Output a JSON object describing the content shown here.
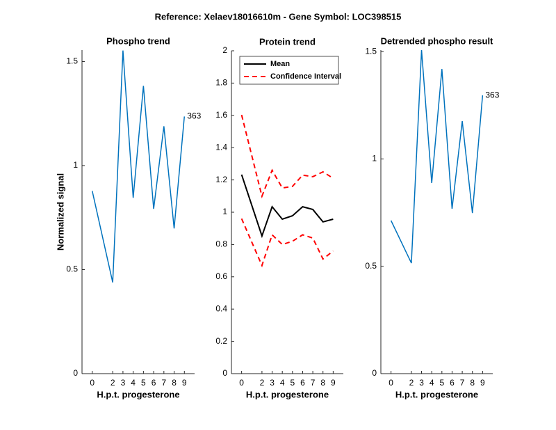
{
  "title": "Reference:  Xelaev18016610m - Gene Symbol:  LOC398515",
  "chart_data": [
    {
      "type": "line",
      "title": "Phospho trend",
      "xlabel": "H.p.t. progesterone",
      "ylabel": "Normalized signal",
      "x": [
        0,
        2,
        3,
        4,
        5,
        6,
        7,
        8,
        9
      ],
      "xlim": [
        -1,
        10
      ],
      "xticks": [
        0,
        2,
        3,
        4,
        5,
        6,
        7,
        8,
        9
      ],
      "ylim": [
        0,
        1.555
      ],
      "yticks": [
        0,
        0.5,
        1,
        1.5
      ],
      "annotation": "363",
      "series": [
        {
          "color": "#0072bd",
          "values": [
            0.878,
            0.438,
            1.553,
            0.845,
            1.383,
            0.792,
            1.189,
            0.698,
            1.236
          ]
        }
      ]
    },
    {
      "type": "line",
      "title": "Protein trend",
      "xlabel": "H.p.t. progesterone",
      "legend": "northwest",
      "x": [
        0,
        2,
        3,
        4,
        5,
        6,
        7,
        8,
        9
      ],
      "xlim": [
        -1,
        10
      ],
      "xticks": [
        0,
        2,
        3,
        4,
        5,
        6,
        7,
        8,
        9
      ],
      "ylim": [
        0,
        2
      ],
      "yticks": [
        0,
        0.2,
        0.4,
        0.6,
        0.8,
        1,
        1.2,
        1.4,
        1.6,
        1.8,
        2
      ],
      "series": [
        {
          "name": "Mean",
          "color": "#000000",
          "values": [
            1.233,
            0.853,
            1.034,
            0.957,
            0.978,
            1.034,
            1.017,
            0.94,
            0.957
          ]
        },
        {
          "name": "Confidence Interval",
          "color": "#ff0000",
          "dash": true,
          "values": [
            1.603,
            1.099,
            1.26,
            1.15,
            1.16,
            1.23,
            1.22,
            1.25,
            1.21
          ],
          "lower": [
            0.96,
            0.67,
            0.86,
            0.8,
            0.82,
            0.86,
            0.84,
            0.71,
            0.76
          ]
        }
      ]
    },
    {
      "type": "line",
      "title": "Detrended phospho result",
      "xlabel": "H.p.t. progesterone",
      "x": [
        0,
        2,
        3,
        4,
        5,
        6,
        7,
        8,
        9
      ],
      "xlim": [
        -1,
        10
      ],
      "xticks": [
        0,
        2,
        3,
        4,
        5,
        6,
        7,
        8,
        9
      ],
      "ylim": [
        0,
        1.507
      ],
      "yticks": [
        0,
        0.5,
        1,
        1.5
      ],
      "annotation": "363",
      "series": [
        {
          "color": "#0072bd",
          "values": [
            0.713,
            0.515,
            1.507,
            0.888,
            1.419,
            0.768,
            1.176,
            0.748,
            1.296
          ]
        }
      ]
    }
  ]
}
